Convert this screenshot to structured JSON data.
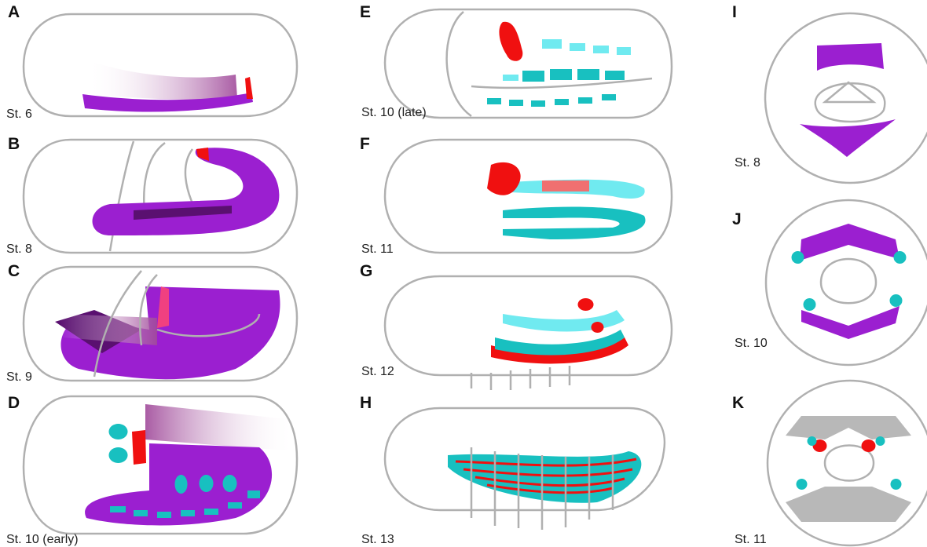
{
  "panels": [
    {
      "letter": "A",
      "stage": "St. 6"
    },
    {
      "letter": "B",
      "stage": "St. 8"
    },
    {
      "letter": "C",
      "stage": "St. 9"
    },
    {
      "letter": "D",
      "stage": "St. 10 (early)"
    },
    {
      "letter": "E",
      "stage": "St. 10 (late)"
    },
    {
      "letter": "F",
      "stage": "St. 11"
    },
    {
      "letter": "G",
      "stage": "St. 12"
    },
    {
      "letter": "H",
      "stage": "St. 13"
    },
    {
      "letter": "I",
      "stage": "St. 8"
    },
    {
      "letter": "J",
      "stage": "St. 10"
    },
    {
      "letter": "K",
      "stage": "St. 11"
    }
  ]
}
